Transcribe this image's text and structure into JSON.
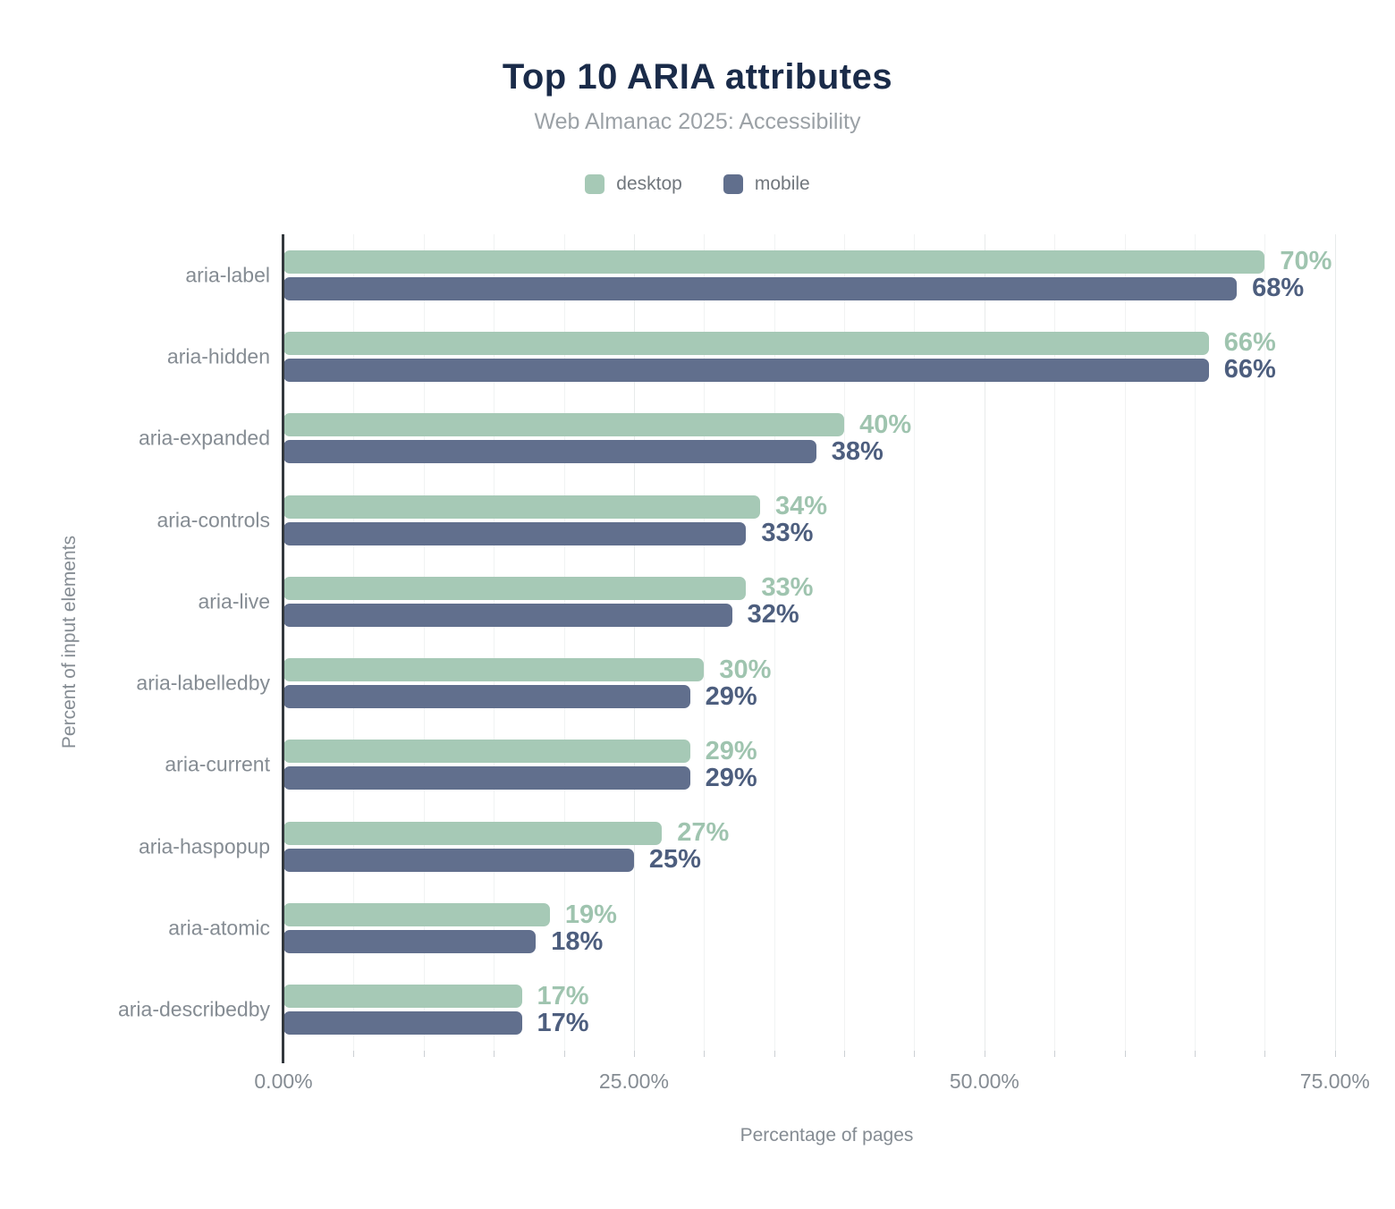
{
  "chart_data": {
    "type": "bar",
    "orientation": "horizontal",
    "title": "Top 10 ARIA attributes",
    "subtitle": "Web Almanac 2025: Accessibility",
    "categories": [
      "aria-label",
      "aria-hidden",
      "aria-expanded",
      "aria-controls",
      "aria-live",
      "aria-labelledby",
      "aria-current",
      "aria-haspopup",
      "aria-atomic",
      "aria-describedby"
    ],
    "series": [
      {
        "name": "desktop",
        "color": "#a6c9b6",
        "label_color": "#9fc4af",
        "values": [
          70,
          66,
          40,
          34,
          33,
          30,
          29,
          27,
          19,
          17
        ]
      },
      {
        "name": "mobile",
        "color": "#616f8d",
        "label_color": "#4d5e7e",
        "values": [
          68,
          66,
          38,
          33,
          32,
          29,
          29,
          25,
          18,
          17
        ]
      }
    ],
    "value_suffix": "%",
    "xlabel": "Percentage of pages",
    "ylabel": "Percent of input elements",
    "x_ticks": [
      "0.00%",
      "25.00%",
      "50.00%",
      "75.00%"
    ],
    "x_tick_values": [
      0,
      25,
      50,
      75
    ],
    "xlim": [
      0,
      77.5
    ],
    "grid": "vertical, every 5%, major at 25/50/75",
    "legend_position": "top",
    "title_color": "#1a2b49"
  }
}
